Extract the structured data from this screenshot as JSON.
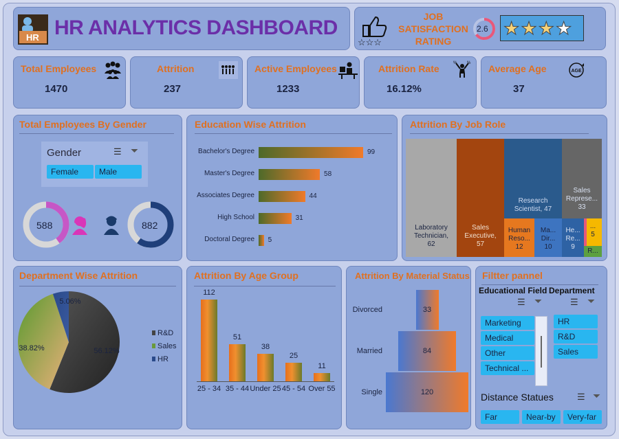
{
  "header": {
    "title": "HR ANALYTICS DASHBOARD",
    "logo_text": "HR",
    "satisfaction_label": "JOB SATISFACTION RATING",
    "satisfaction_value": "2.6",
    "satisfaction_fraction": 0.65,
    "stars_filled": 3,
    "stars_total": 4
  },
  "kpis": [
    {
      "label": "Total Employees",
      "value": "1470",
      "icon": "people-icon"
    },
    {
      "label": "Attrition",
      "value": "237",
      "icon": "attrition-icon"
    },
    {
      "label": "Active Employees",
      "value": "1233",
      "icon": "desk-worker-icon"
    },
    {
      "label": "Attrition Rate",
      "value": "16.12%",
      "icon": "juggler-icon"
    },
    {
      "label": "Average Age",
      "value": "37",
      "icon": "age-icon"
    }
  ],
  "gender": {
    "title": "Total Employees By Gender",
    "slicer_label": "Gender",
    "options": [
      "Female",
      "Male"
    ],
    "female": "588",
    "male": "882",
    "female_fraction": 0.4,
    "male_fraction": 0.6
  },
  "education": {
    "title": "Education Wise Attrition",
    "chart_data": {
      "type": "bar",
      "categories": [
        "Bachelor's Degree",
        "Master's Degree",
        "Associates Degree",
        "High School",
        "Doctoral Degree"
      ],
      "values": [
        99,
        58,
        44,
        31,
        5
      ]
    }
  },
  "jobrole": {
    "title": "Attrition By Job Role",
    "items": [
      {
        "label": "Laboratory Technician,",
        "value": "62",
        "color": "#a8a8a8"
      },
      {
        "label": "Sales Executive,",
        "value": "57",
        "color": "#a3450f"
      },
      {
        "label": "Research Scientist, 47",
        "value": "",
        "color": "#2a5a8c"
      },
      {
        "label": "Sales Represe...",
        "value": "33",
        "color": "#666666"
      },
      {
        "label": "Human Reso...",
        "value": "12",
        "color": "#e6781f"
      },
      {
        "label": "Ma... Dir...",
        "value": "10",
        "color": "#3d74c0"
      },
      {
        "label": "He... Re...",
        "value": "9",
        "color": "#2e62a4"
      },
      {
        "label": "...",
        "value": "5",
        "color": "#f5b800"
      },
      {
        "label": "R...",
        "value": "",
        "color": "#5ca040"
      }
    ]
  },
  "department": {
    "title": "Department Wise Attrition",
    "chart_data": {
      "type": "pie",
      "categories": [
        "R&D",
        "Sales",
        "HR"
      ],
      "values": [
        56.12,
        38.82,
        5.06
      ],
      "labels": [
        "56.12%",
        "38.82%",
        "5.06%"
      ],
      "legend": "right"
    }
  },
  "agegroup": {
    "title": "Attrition By Age Group",
    "chart_data": {
      "type": "bar",
      "categories": [
        "25 - 34",
        "35 - 44",
        "Under 25",
        "45 - 54",
        "Over 55"
      ],
      "values": [
        112,
        51,
        38,
        25,
        11
      ]
    }
  },
  "marital": {
    "title": "Attrition By Material Status",
    "chart_data": {
      "type": "bar",
      "categories": [
        "Divorced",
        "Married",
        "Single"
      ],
      "values": [
        33,
        84,
        120
      ]
    }
  },
  "filter": {
    "title": "Filtter pannel",
    "edu_label": "Educational Field",
    "dept_label": "Department",
    "edu_options": [
      "Marketing",
      "Medical",
      "Other",
      "Technical ..."
    ],
    "dept_options": [
      "HR",
      "R&D",
      "Sales"
    ],
    "distance_label": "Distance Statues",
    "distance_options": [
      "Far",
      "Near-by",
      "Very-far"
    ]
  },
  "colors": {
    "accent": "#e07020",
    "title": "#6b2fa8",
    "pill": "#29b6f0",
    "card": "#8fa6d9"
  }
}
